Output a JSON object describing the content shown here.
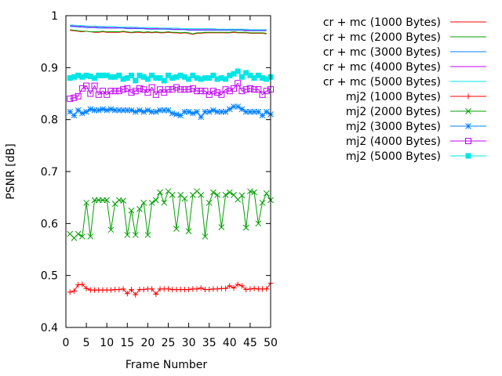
{
  "chart_data": {
    "type": "line",
    "title": "",
    "xlabel": "Frame Number",
    "ylabel": "PSNR [dB]",
    "xlim": [
      0,
      50
    ],
    "ylim": [
      0.4,
      1.0
    ],
    "xticks": [
      0,
      5,
      10,
      15,
      20,
      25,
      30,
      35,
      40,
      45,
      50
    ],
    "yticks": [
      0.4,
      0.5,
      0.6,
      0.7,
      0.8,
      0.9,
      1.0
    ],
    "xtick_labels": [
      "0",
      "5",
      "10",
      "15",
      "20",
      "25",
      "30",
      "35",
      "40",
      "45",
      "50"
    ],
    "ytick_labels": [
      "0.4",
      "0.5",
      "0.6",
      "0.7",
      "0.8",
      "0.9",
      "1"
    ],
    "grid": false,
    "legend_position": "outside-right",
    "series": [
      {
        "name": "cr + mc (1000 Bytes)",
        "color": "#ff0000",
        "marker": "none",
        "y": [
          0.972,
          0.971,
          0.97,
          0.969,
          0.97,
          0.969,
          0.968,
          0.968,
          0.969,
          0.968,
          0.968,
          0.968,
          0.968,
          0.969,
          0.968,
          0.967,
          0.968,
          0.968,
          0.967,
          0.968,
          0.967,
          0.968,
          0.967,
          0.967,
          0.968,
          0.967,
          0.967,
          0.966,
          0.967,
          0.966,
          0.964,
          0.966,
          0.966,
          0.967,
          0.967,
          0.967,
          0.967,
          0.967,
          0.967,
          0.967,
          0.968,
          0.967,
          0.967,
          0.967,
          0.966,
          0.966,
          0.966,
          0.966,
          0.965
        ]
      },
      {
        "name": "cr + mc (2000 Bytes)",
        "color": "#00a000",
        "marker": "none",
        "y": [
          0.973,
          0.972,
          0.971,
          0.97,
          0.97,
          0.969,
          0.969,
          0.969,
          0.97,
          0.969,
          0.969,
          0.969,
          0.969,
          0.97,
          0.969,
          0.968,
          0.969,
          0.969,
          0.968,
          0.969,
          0.968,
          0.969,
          0.968,
          0.968,
          0.969,
          0.968,
          0.968,
          0.967,
          0.968,
          0.967,
          0.965,
          0.967,
          0.967,
          0.968,
          0.968,
          0.968,
          0.968,
          0.968,
          0.968,
          0.968,
          0.969,
          0.968,
          0.968,
          0.968,
          0.967,
          0.967,
          0.967,
          0.967,
          0.966
        ]
      },
      {
        "name": "cr + mc (3000 Bytes)",
        "color": "#0080ff",
        "marker": "none",
        "y": [
          0.979,
          0.979,
          0.978,
          0.978,
          0.977,
          0.977,
          0.977,
          0.976,
          0.976,
          0.976,
          0.976,
          0.976,
          0.976,
          0.976,
          0.975,
          0.975,
          0.975,
          0.975,
          0.975,
          0.974,
          0.974,
          0.974,
          0.974,
          0.974,
          0.974,
          0.973,
          0.973,
          0.973,
          0.973,
          0.972,
          0.972,
          0.972,
          0.972,
          0.972,
          0.972,
          0.972,
          0.972,
          0.972,
          0.972,
          0.972,
          0.972,
          0.972,
          0.972,
          0.971,
          0.971,
          0.971,
          0.971,
          0.971,
          0.971
        ]
      },
      {
        "name": "cr + mc (4000 Bytes)",
        "color": "#c000ff",
        "marker": "none",
        "y": [
          0.981,
          0.98,
          0.98,
          0.979,
          0.979,
          0.978,
          0.978,
          0.978,
          0.978,
          0.977,
          0.977,
          0.977,
          0.977,
          0.977,
          0.976,
          0.976,
          0.976,
          0.976,
          0.976,
          0.975,
          0.975,
          0.975,
          0.975,
          0.975,
          0.975,
          0.974,
          0.974,
          0.974,
          0.974,
          0.973,
          0.973,
          0.973,
          0.973,
          0.973,
          0.973,
          0.973,
          0.973,
          0.973,
          0.973,
          0.973,
          0.973,
          0.973,
          0.973,
          0.972,
          0.972,
          0.972,
          0.972,
          0.972,
          0.972
        ]
      },
      {
        "name": "cr + mc (5000 Bytes)",
        "color": "#00e5e5",
        "marker": "none",
        "y": [
          0.982,
          0.982,
          0.981,
          0.981,
          0.98,
          0.98,
          0.98,
          0.979,
          0.979,
          0.979,
          0.979,
          0.979,
          0.978,
          0.978,
          0.978,
          0.978,
          0.978,
          0.977,
          0.977,
          0.977,
          0.977,
          0.977,
          0.976,
          0.976,
          0.976,
          0.976,
          0.976,
          0.975,
          0.975,
          0.975,
          0.975,
          0.975,
          0.975,
          0.975,
          0.975,
          0.975,
          0.974,
          0.974,
          0.974,
          0.974,
          0.974,
          0.974,
          0.974,
          0.974,
          0.973,
          0.973,
          0.973,
          0.973,
          0.973
        ]
      },
      {
        "name": "mj2 (1000 Bytes)",
        "color": "#ff0000",
        "marker": "plus",
        "y": [
          0.468,
          0.47,
          0.482,
          0.483,
          0.475,
          0.472,
          0.472,
          0.472,
          0.472,
          0.472,
          0.472,
          0.473,
          0.473,
          0.474,
          0.465,
          0.473,
          0.463,
          0.473,
          0.473,
          0.474,
          0.474,
          0.464,
          0.474,
          0.474,
          0.474,
          0.473,
          0.473,
          0.473,
          0.473,
          0.473,
          0.474,
          0.474,
          0.476,
          0.473,
          0.473,
          0.474,
          0.474,
          0.475,
          0.475,
          0.48,
          0.476,
          0.483,
          0.48,
          0.473,
          0.474,
          0.475,
          0.474,
          0.474,
          0.474,
          0.485
        ]
      },
      {
        "name": "mj2 (2000 Bytes)",
        "color": "#00a000",
        "marker": "x",
        "y": [
          0.58,
          0.572,
          0.58,
          0.575,
          0.64,
          0.575,
          0.645,
          0.645,
          0.645,
          0.645,
          0.588,
          0.638,
          0.645,
          0.644,
          0.578,
          0.625,
          0.578,
          0.628,
          0.64,
          0.578,
          0.64,
          0.645,
          0.66,
          0.64,
          0.662,
          0.655,
          0.59,
          0.655,
          0.648,
          0.585,
          0.655,
          0.662,
          0.655,
          0.575,
          0.64,
          0.66,
          0.655,
          0.593,
          0.655,
          0.66,
          0.655,
          0.646,
          0.654,
          0.592,
          0.662,
          0.66,
          0.6,
          0.64,
          0.658,
          0.645
        ]
      },
      {
        "name": "mj2 (3000 Bytes)",
        "color": "#0080ff",
        "marker": "star",
        "y": [
          0.815,
          0.808,
          0.818,
          0.812,
          0.815,
          0.82,
          0.818,
          0.818,
          0.82,
          0.818,
          0.82,
          0.818,
          0.818,
          0.818,
          0.818,
          0.818,
          0.815,
          0.818,
          0.815,
          0.818,
          0.815,
          0.815,
          0.818,
          0.818,
          0.818,
          0.812,
          0.81,
          0.808,
          0.815,
          0.815,
          0.812,
          0.815,
          0.805,
          0.815,
          0.815,
          0.818,
          0.815,
          0.815,
          0.815,
          0.82,
          0.825,
          0.825,
          0.82,
          0.815,
          0.815,
          0.815,
          0.815,
          0.808,
          0.815,
          0.81
        ]
      },
      {
        "name": "mj2 (4000 Bytes)",
        "color": "#c000ff",
        "marker": "box",
        "y": [
          0.84,
          0.842,
          0.845,
          0.86,
          0.865,
          0.85,
          0.865,
          0.848,
          0.855,
          0.848,
          0.855,
          0.855,
          0.855,
          0.858,
          0.86,
          0.852,
          0.855,
          0.86,
          0.858,
          0.852,
          0.862,
          0.848,
          0.858,
          0.852,
          0.858,
          0.858,
          0.862,
          0.858,
          0.858,
          0.858,
          0.86,
          0.855,
          0.855,
          0.855,
          0.848,
          0.855,
          0.852,
          0.848,
          0.858,
          0.855,
          0.86,
          0.87,
          0.855,
          0.858,
          0.86,
          0.858,
          0.858,
          0.848,
          0.855,
          0.858
        ]
      },
      {
        "name": "mj2 (5000 Bytes)",
        "color": "#00e5e5",
        "marker": "filled-box",
        "y": [
          0.88,
          0.882,
          0.885,
          0.882,
          0.885,
          0.883,
          0.88,
          0.885,
          0.885,
          0.885,
          0.882,
          0.882,
          0.885,
          0.878,
          0.88,
          0.885,
          0.875,
          0.885,
          0.882,
          0.878,
          0.885,
          0.88,
          0.88,
          0.875,
          0.885,
          0.88,
          0.882,
          0.885,
          0.882,
          0.878,
          0.885,
          0.88,
          0.878,
          0.88,
          0.88,
          0.885,
          0.878,
          0.88,
          0.878,
          0.885,
          0.888,
          0.893,
          0.882,
          0.89,
          0.885,
          0.88,
          0.885,
          0.88,
          0.878,
          0.882
        ]
      }
    ]
  }
}
